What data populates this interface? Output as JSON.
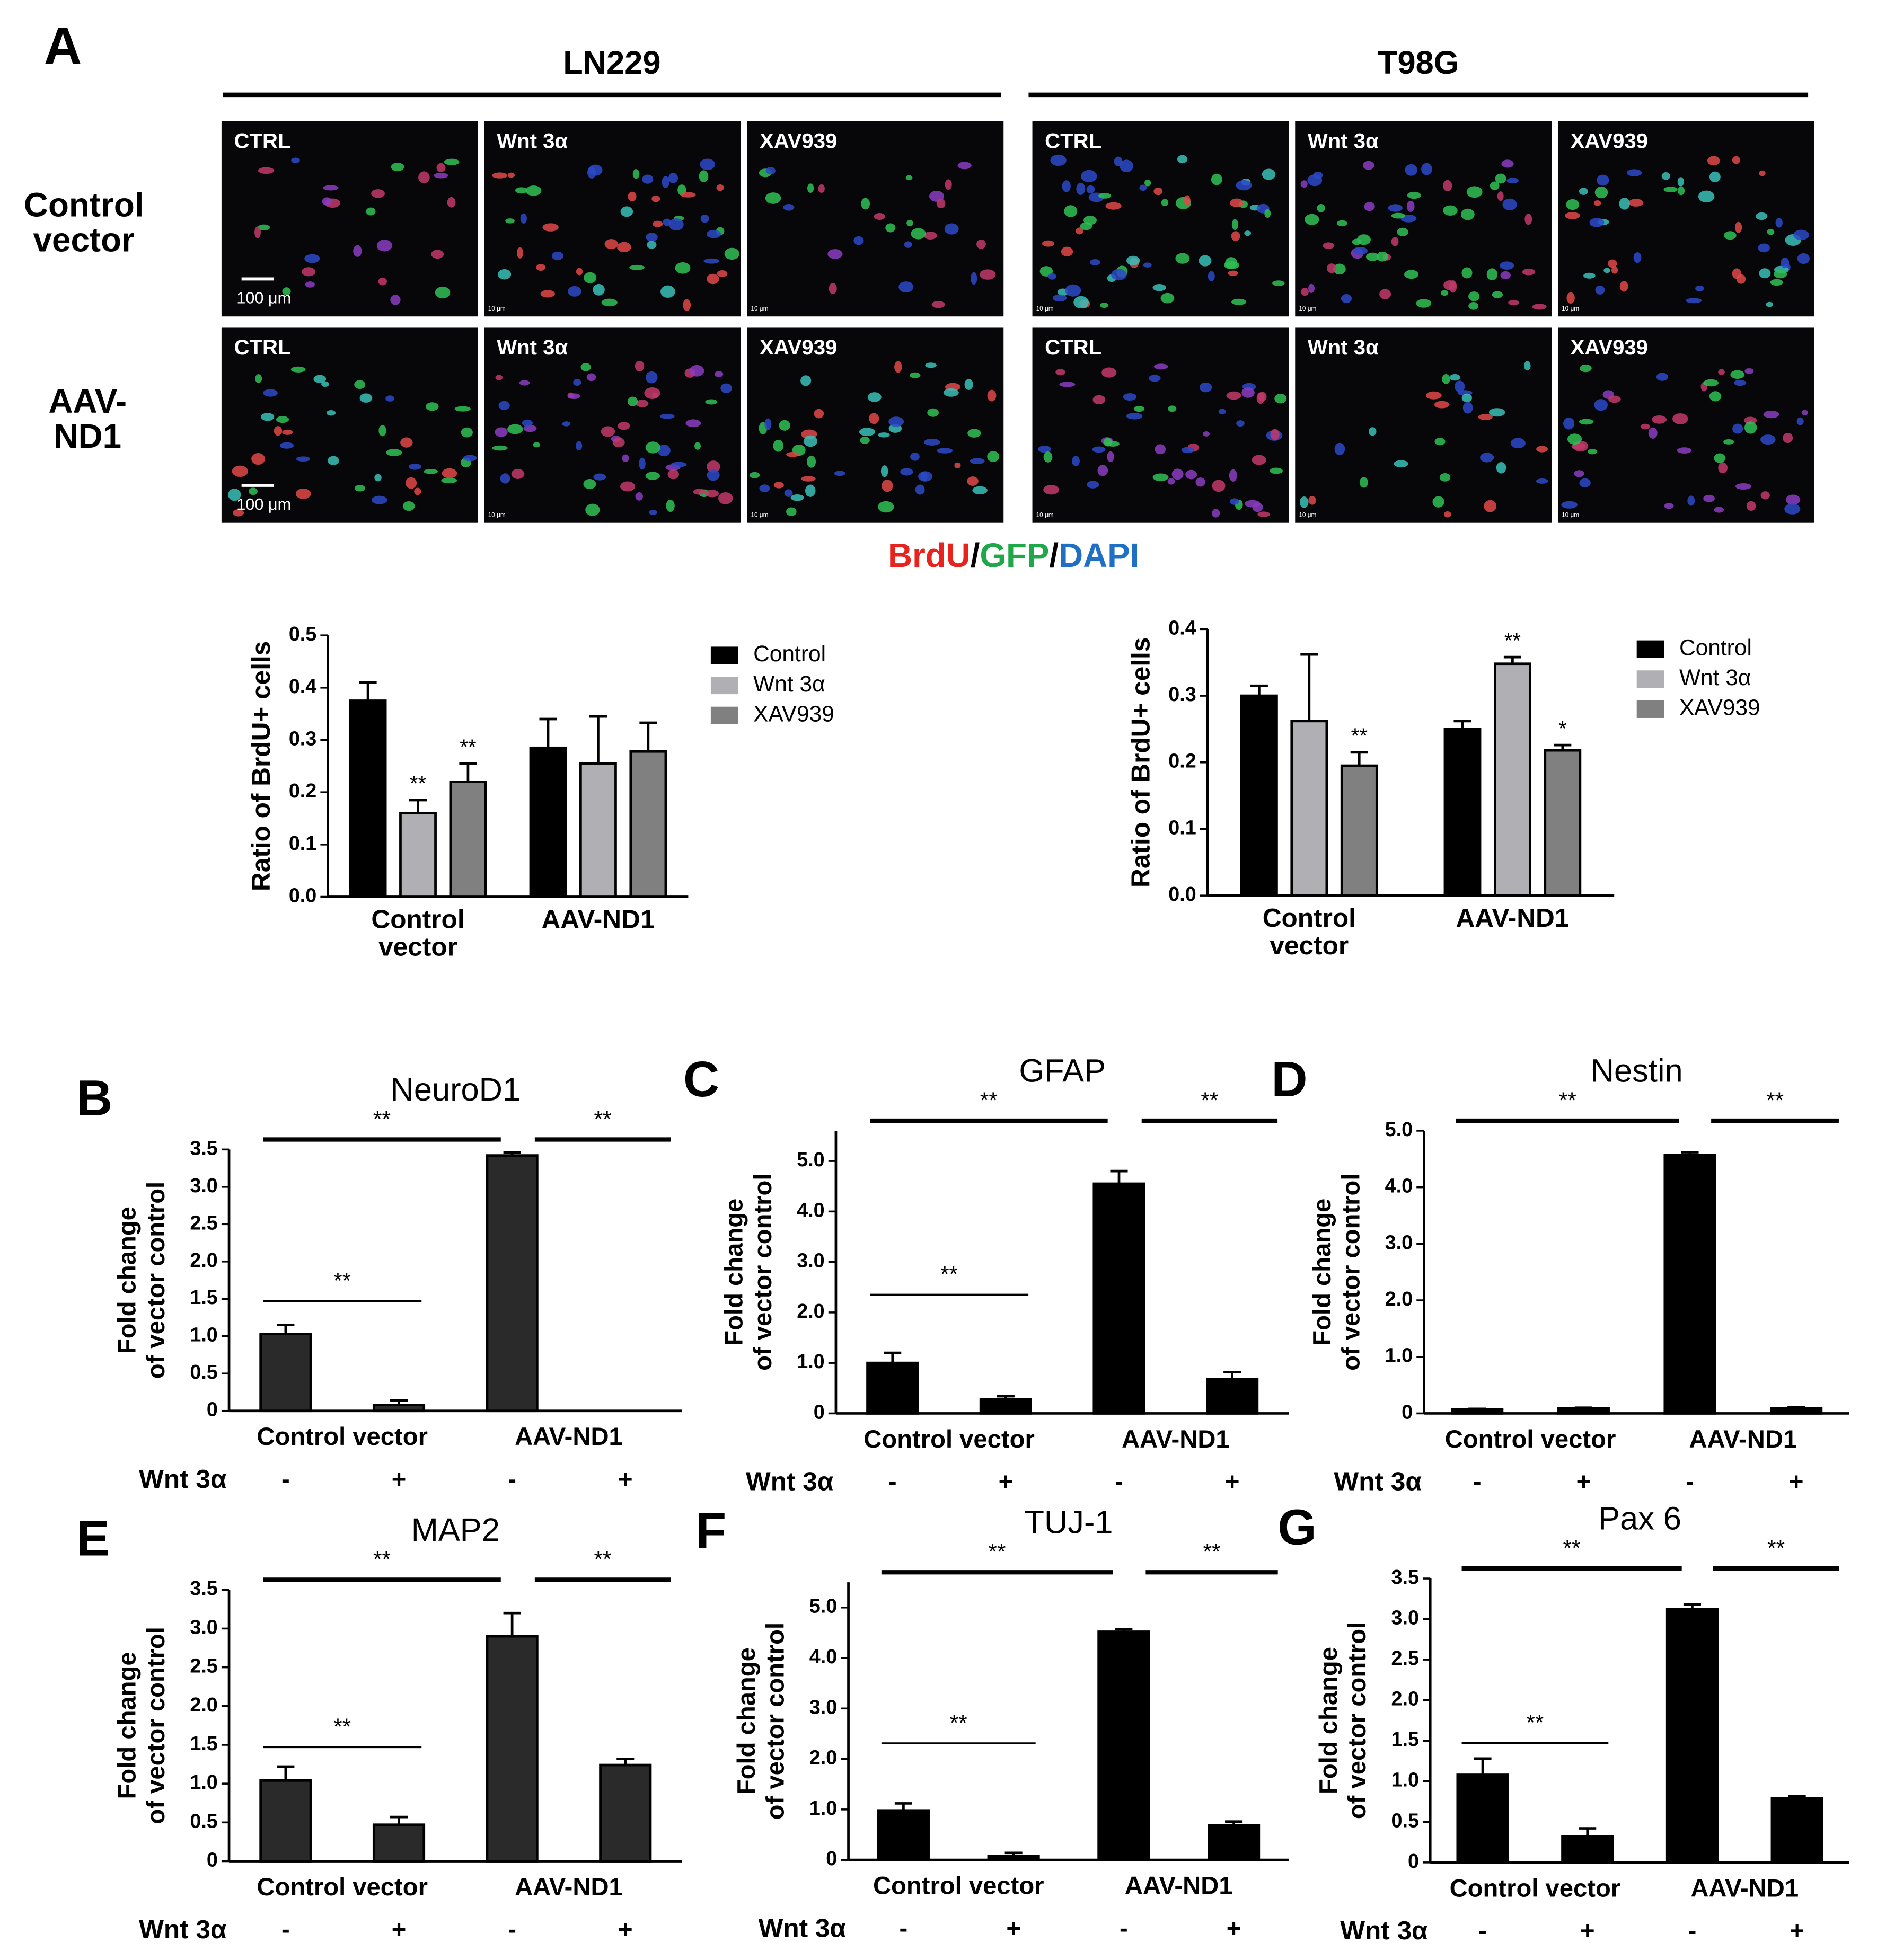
{
  "panel_a": {
    "letter": "A",
    "rows": [
      "Control vector",
      "AAV-ND1"
    ],
    "cell_lines": [
      {
        "name": "LN229",
        "images": [
          [
            {
              "label": "CTRL",
              "scale": "100 μm"
            },
            {
              "label": "Wnt 3α",
              "scale": "10 μm"
            },
            {
              "label": "XAV939",
              "scale": "10 μm"
            }
          ],
          [
            {
              "label": "CTRL",
              "scale": "100 μm"
            },
            {
              "label": "Wnt 3α",
              "scale": "10 μm"
            },
            {
              "label": "XAV939",
              "scale": "10 μm"
            }
          ]
        ]
      },
      {
        "name": "T98G",
        "images": [
          [
            {
              "label": "CTRL",
              "scale": "10 μm"
            },
            {
              "label": "Wnt 3α",
              "scale": "10 μm"
            },
            {
              "label": "XAV939",
              "scale": "10 μm"
            }
          ],
          [
            {
              "label": "CTRL",
              "scale": "10 μm"
            },
            {
              "label": "Wnt 3α",
              "scale": "10 μm"
            },
            {
              "label": "XAV939",
              "scale": "10 μm"
            }
          ]
        ]
      }
    ],
    "stain": [
      {
        "text": "BrdU",
        "color": "#e8221c"
      },
      {
        "text": "/",
        "color": "#000000"
      },
      {
        "text": "GFP",
        "color": "#1fa84a"
      },
      {
        "text": "/",
        "color": "#000000"
      },
      {
        "text": "DAPI",
        "color": "#1f6fc4"
      }
    ]
  },
  "chart_data": [
    {
      "type": "bar",
      "ylabel": "Ratio of BrdU+ cells",
      "categories": [
        "Control vector",
        "AAV-ND1"
      ],
      "ylim": [
        0,
        0.5
      ],
      "yticks": [
        {
          "value": 0,
          "label": "0.0"
        },
        0.1,
        0.2,
        0.3,
        0.4,
        0.5
      ],
      "series": [
        {
          "name": "Control",
          "color": "#000000",
          "values": [
            0.375,
            0.285
          ],
          "errors": [
            0.035,
            0.055
          ],
          "significance": [
            null,
            null
          ]
        },
        {
          "name": "Wnt 3α",
          "color": "#b0b0b4",
          "values": [
            0.16,
            0.255
          ],
          "errors": [
            0.025,
            0.09
          ],
          "significance": [
            "**",
            null
          ]
        },
        {
          "name": "XAV939",
          "color": "#808080",
          "values": [
            0.22,
            0.278
          ],
          "errors": [
            0.035,
            0.055
          ],
          "significance": [
            "**",
            null
          ]
        }
      ]
    },
    {
      "type": "bar",
      "ylabel": "Ratio of BrdU+ cells",
      "categories": [
        "Control vector",
        "AAV-ND1"
      ],
      "ylim": [
        0,
        0.4
      ],
      "yticks": [
        {
          "value": 0,
          "label": "0.0"
        },
        0.1,
        0.2,
        0.3,
        0.4
      ],
      "series": [
        {
          "name": "Control",
          "color": "#000000",
          "values": [
            0.3,
            0.25
          ],
          "errors": [
            0.015,
            0.012
          ],
          "significance": [
            null,
            null
          ]
        },
        {
          "name": "Wnt 3α",
          "color": "#b0b0b4",
          "values": [
            0.262,
            0.348
          ],
          "errors": [
            0.1,
            0.01
          ],
          "significance": [
            null,
            "**"
          ]
        },
        {
          "name": "XAV939",
          "color": "#808080",
          "values": [
            0.195,
            0.218
          ],
          "errors": [
            0.02,
            0.008
          ],
          "significance": [
            "**",
            "*"
          ]
        }
      ]
    },
    {
      "type": "bar",
      "panel": "B",
      "title": "NeuroD1",
      "ylabel": [
        "Fold change",
        "of vector control"
      ],
      "color": "#2a2a2a",
      "groups": [
        "Control vector",
        "AAV-ND1"
      ],
      "row_label": "Wnt 3α",
      "categories": [
        "-",
        "+",
        "-",
        "+"
      ],
      "values": [
        1.03,
        0.08,
        3.42,
        0
      ],
      "errors": [
        0.12,
        0.06,
        0.04,
        0
      ],
      "ylim": [
        0,
        3.5
      ],
      "yticks": [
        0,
        0.5,
        {
          "value": 1,
          "label": "1.0"
        },
        1.5,
        {
          "value": 2,
          "label": "2.0"
        },
        2.5,
        {
          "value": 3,
          "label": "3.0"
        },
        3.5
      ],
      "significance": {
        "within_control": "**",
        "between_groups": "**",
        "within_aav": "**"
      }
    },
    {
      "type": "bar",
      "panel": "C",
      "title": "GFAP",
      "ylabel": [
        "Fold change",
        "of vector control"
      ],
      "color": "#000000",
      "groups": [
        "Control vector",
        "AAV-ND1"
      ],
      "row_label": "Wnt 3α",
      "categories": [
        "-",
        "+",
        "-",
        "+"
      ],
      "values": [
        1.0,
        0.28,
        4.55,
        0.68
      ],
      "errors": [
        0.2,
        0.06,
        0.25,
        0.14
      ],
      "ylim": [
        0,
        5.6
      ],
      "yticks": [
        0,
        {
          "value": 1,
          "label": "1.0"
        },
        {
          "value": 2,
          "label": "2.0"
        },
        {
          "value": 3,
          "label": "3.0"
        },
        {
          "value": 4,
          "label": "4.0"
        },
        {
          "value": 5,
          "label": "5.0"
        }
      ],
      "significance": {
        "within_control": "**",
        "between_groups": "**",
        "within_aav": "**"
      }
    },
    {
      "type": "bar",
      "panel": "D",
      "title": "Nestin",
      "ylabel": [
        "Fold change",
        "of vector control"
      ],
      "color": "#000000",
      "groups": [
        "Control vector",
        "AAV-ND1"
      ],
      "row_label": "Wnt 3α",
      "categories": [
        "-",
        "+",
        "-",
        "+"
      ],
      "values": [
        0.07,
        0.09,
        4.57,
        0.09
      ],
      "errors": [
        0.01,
        0.01,
        0.05,
        0.02
      ],
      "ylim": [
        0,
        5
      ],
      "yticks": [
        0,
        {
          "value": 1,
          "label": "1.0"
        },
        {
          "value": 2,
          "label": "2.0"
        },
        {
          "value": 3,
          "label": "3.0"
        },
        {
          "value": 4,
          "label": "4.0"
        },
        {
          "value": 5,
          "label": "5.0"
        }
      ],
      "significance": {
        "between_groups": "**",
        "within_aav": "**"
      }
    },
    {
      "type": "bar",
      "panel": "E",
      "title": "MAP2",
      "ylabel": [
        "Fold change",
        "of vector control"
      ],
      "color": "#2a2a2a",
      "groups": [
        "Control vector",
        "AAV-ND1"
      ],
      "row_label": "Wnt 3α",
      "categories": [
        "-",
        "+",
        "-",
        "+"
      ],
      "values": [
        1.04,
        0.47,
        2.9,
        1.24
      ],
      "errors": [
        0.18,
        0.1,
        0.3,
        0.08
      ],
      "ylim": [
        0,
        3.5
      ],
      "yticks": [
        0,
        0.5,
        {
          "value": 1,
          "label": "1.0"
        },
        1.5,
        {
          "value": 2,
          "label": "2.0"
        },
        2.5,
        {
          "value": 3,
          "label": "3.0"
        },
        3.5
      ],
      "significance": {
        "within_control": "**",
        "between_groups": "**",
        "within_aav": "**"
      }
    },
    {
      "type": "bar",
      "panel": "F",
      "title": "TUJ-1",
      "ylabel": [
        "Fold change",
        "of vector control"
      ],
      "color": "#000000",
      "groups": [
        "Control vector",
        "AAV-ND1"
      ],
      "row_label": "Wnt 3α",
      "categories": [
        "-",
        "+",
        "-",
        "+"
      ],
      "values": [
        0.98,
        0.08,
        4.52,
        0.68
      ],
      "errors": [
        0.14,
        0.06,
        0.05,
        0.08
      ],
      "ylim": [
        0,
        5.5
      ],
      "yticks": [
        0,
        {
          "value": 1,
          "label": "1.0"
        },
        {
          "value": 2,
          "label": "2.0"
        },
        {
          "value": 3,
          "label": "3.0"
        },
        {
          "value": 4,
          "label": "4.0"
        },
        {
          "value": 5,
          "label": "5.0"
        }
      ],
      "significance": {
        "within_control": "**",
        "between_groups": "**",
        "within_aav": "**"
      }
    },
    {
      "type": "bar",
      "panel": "G",
      "title": "Pax 6",
      "ylabel": [
        "Fold change",
        "of vector control"
      ],
      "color": "#000000",
      "groups": [
        "Control vector",
        "AAV-ND1"
      ],
      "row_label": "Wnt 3α",
      "categories": [
        "-",
        "+",
        "-",
        "+"
      ],
      "values": [
        1.08,
        0.32,
        3.12,
        0.79
      ],
      "errors": [
        0.2,
        0.1,
        0.06,
        0.03
      ],
      "ylim": [
        0,
        3.5
      ],
      "yticks": [
        0,
        0.5,
        {
          "value": 1,
          "label": "1.0"
        },
        1.5,
        {
          "value": 2,
          "label": "2.0"
        },
        2.5,
        {
          "value": 3,
          "label": "3.0"
        },
        3.5
      ],
      "significance": {
        "within_control": "**",
        "between_groups": "**",
        "within_aav": "**"
      }
    }
  ]
}
